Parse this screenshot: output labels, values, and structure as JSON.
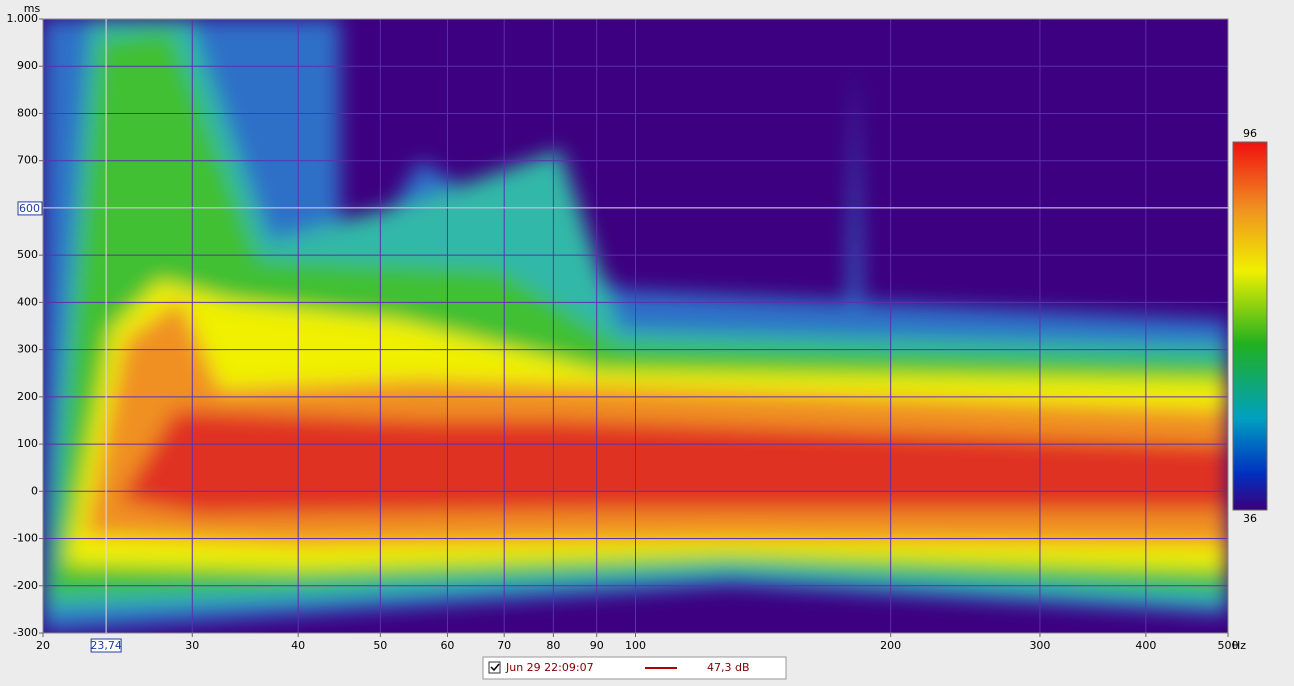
{
  "chart_data": {
    "type": "spectrogram",
    "x_label": "Hz",
    "y_label": "ms",
    "xlim": [
      20,
      500
    ],
    "log_x": true,
    "xticks": [
      20,
      30,
      40,
      50,
      60,
      70,
      80,
      90,
      100,
      200,
      300,
      400,
      500
    ],
    "ylim": [
      -300,
      1000
    ],
    "yticks": [
      -300,
      -200,
      -100,
      0,
      100,
      200,
      300,
      400,
      500,
      600,
      700,
      800,
      900,
      {
        "value": 1000,
        "label": "1.000"
      }
    ],
    "grid": true,
    "cursor": {
      "x": {
        "value": 23.74,
        "label": "23,74"
      },
      "y": 600
    },
    "colorbar": {
      "lim": [
        36,
        96
      ],
      "ticks": [
        36,
        96
      ]
    },
    "legend": {
      "name": "Jun 29 22:09:07",
      "color": "#b00000",
      "level": "47,3 dB"
    }
  }
}
